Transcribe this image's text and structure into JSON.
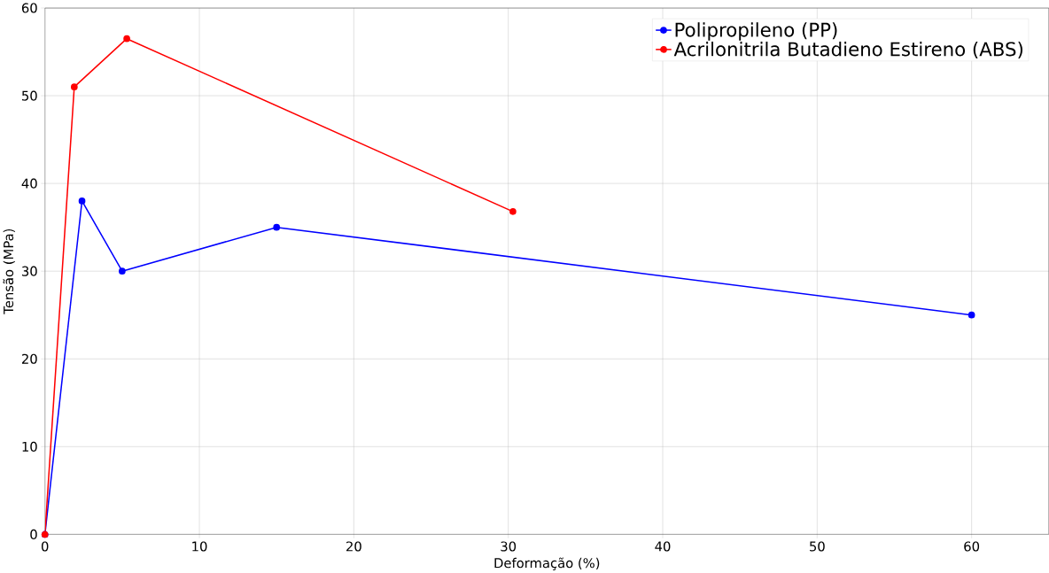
{
  "chart_data": {
    "type": "line",
    "xlabel": "Deformação (%)",
    "ylabel": "Tensão (MPa)",
    "xlim": [
      0,
      65
    ],
    "ylim": [
      0,
      60
    ],
    "xticks": [
      0,
      10,
      20,
      30,
      40,
      50,
      60
    ],
    "yticks": [
      0,
      10,
      20,
      30,
      40,
      50,
      60
    ],
    "grid": true,
    "legend": "top right",
    "marker": "circle",
    "line_style": "solid",
    "series": [
      {
        "name": "Polipropileno (PP)",
        "color": "#0000ff",
        "x": [
          0,
          2.4,
          5,
          15,
          60
        ],
        "values": [
          0,
          38,
          30,
          35,
          25
        ]
      },
      {
        "name": "Acrilonitrila Butadieno Estireno (ABS)",
        "color": "#ff0000",
        "x": [
          0,
          1.9,
          5.3,
          30.3
        ],
        "values": [
          0,
          51,
          56.5,
          36.8
        ]
      }
    ]
  }
}
